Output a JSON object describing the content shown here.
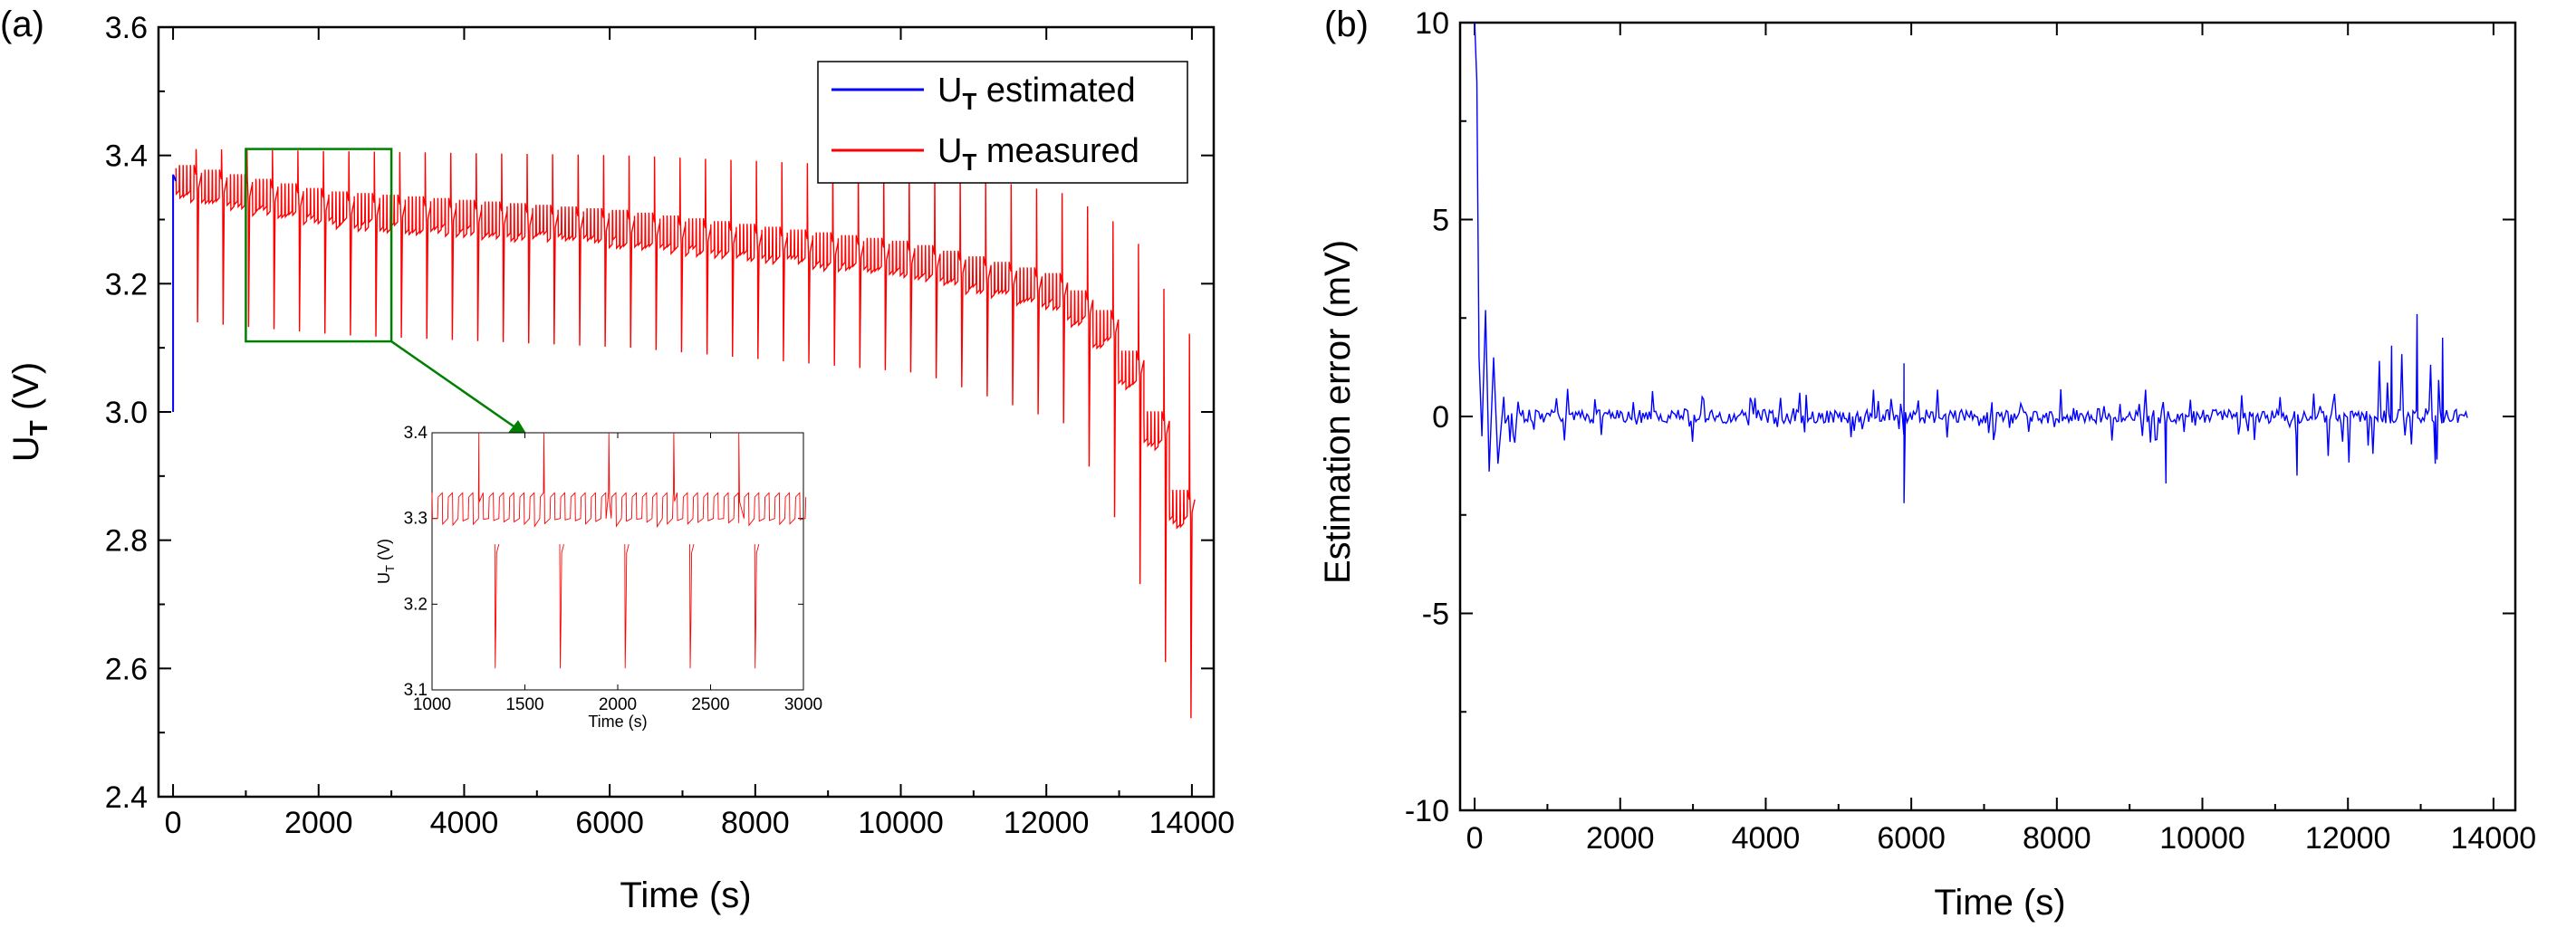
{
  "chart_data": [
    {
      "type": "line",
      "panel_label": "(a)",
      "xlabel": "Time (s)",
      "ylabel": "U",
      "ylabel_sub": "T",
      "ylabel_unit": " (V)",
      "xlim": [
        -200,
        14300
      ],
      "ylim": [
        2.4,
        3.6
      ],
      "xticks": [
        0,
        2000,
        4000,
        6000,
        8000,
        10000,
        12000,
        14000
      ],
      "xtick_labels": [
        "0",
        "2000",
        "4000",
        "6000",
        "8000",
        "10000",
        "12000",
        "14000"
      ],
      "yticks": [
        2.4,
        2.6,
        2.8,
        3.0,
        3.2,
        3.4,
        3.6
      ],
      "ytick_labels": [
        "2.4",
        "2.6",
        "2.8",
        "3.0",
        "3.2",
        "3.4",
        "3.6"
      ],
      "legend_position": "top-right",
      "series": [
        {
          "name": "U",
          "name_sub": "T",
          "name_rest": " estimated",
          "color": "#0000ff",
          "points": [
            [
              0,
              3.0
            ],
            [
              0,
              3.37
            ],
            [
              40,
              3.36
            ]
          ]
        },
        {
          "name": "U",
          "name_sub": "T",
          "name_rest": " measured",
          "color": "#ff0000",
          "pulse_period_s": 350,
          "start_s": 40,
          "end_s": 13700,
          "rest_level_anchors": [
            [
              40,
              3.37
            ],
            [
              2000,
              3.33
            ],
            [
              6000,
              3.3
            ],
            [
              10000,
              3.25
            ],
            [
              12000,
              3.2
            ],
            [
              12800,
              3.13
            ],
            [
              13300,
              3.0
            ],
            [
              13700,
              2.86
            ]
          ],
          "high_peak_anchors": [
            [
              0,
              3.41
            ],
            [
              6000,
              3.4
            ],
            [
              10000,
              3.38
            ],
            [
              12000,
              3.34
            ],
            [
              12900,
              3.28
            ],
            [
              13700,
              3.12
            ]
          ],
          "low_peak_anchors": [
            [
              0,
              3.14
            ],
            [
              2000,
              3.12
            ],
            [
              6000,
              3.1
            ],
            [
              10000,
              3.06
            ],
            [
              12000,
              2.98
            ],
            [
              12800,
              2.8
            ],
            [
              13300,
              2.62
            ],
            [
              13700,
              2.52
            ]
          ]
        }
      ],
      "zoom_box": {
        "x": [
          1000,
          3000
        ],
        "y": [
          3.11,
          3.41
        ],
        "color": "#008000"
      },
      "inset": {
        "xlabel": "Time (s)",
        "ylabel": "U",
        "ylabel_sub": "T",
        "ylabel_unit": " (V)",
        "xlim": [
          1000,
          3000
        ],
        "ylim": [
          3.1,
          3.4
        ],
        "xticks": [
          1000,
          1500,
          2000,
          2500,
          3000
        ],
        "xtick_labels": [
          "1000",
          "1500",
          "2000",
          "2500",
          "3000"
        ],
        "yticks": [
          3.1,
          3.2,
          3.3,
          3.4
        ],
        "ytick_labels": [
          "3.1",
          "3.2",
          "3.3",
          "3.4"
        ],
        "pulse_times_s": [
          1340,
          1690,
          2040,
          2390,
          2740
        ]
      }
    },
    {
      "type": "line",
      "panel_label": "(b)",
      "xlabel": "Time (s)",
      "ylabel": "Estimation error (mV)",
      "xlim": [
        -200,
        14300
      ],
      "ylim": [
        -10,
        10
      ],
      "xticks": [
        0,
        2000,
        4000,
        6000,
        8000,
        10000,
        12000,
        14000
      ],
      "xtick_labels": [
        "0",
        "2000",
        "4000",
        "6000",
        "8000",
        "10000",
        "12000",
        "14000"
      ],
      "yticks": [
        -10,
        -5,
        0,
        5,
        10
      ],
      "ytick_labels": [
        "-10",
        "-5",
        "0",
        "5",
        "10"
      ],
      "series": [
        {
          "color": "#0000ff",
          "initial_transient": [
            [
              0,
              10
            ],
            [
              30,
              8.5
            ],
            [
              60,
              1.5
            ],
            [
              100,
              -0.5
            ],
            [
              150,
              2.7
            ],
            [
              200,
              -1.4
            ],
            [
              260,
              1.5
            ],
            [
              320,
              -1.2
            ],
            [
              400,
              0.5
            ]
          ],
          "end_s": 13650,
          "spike_events": [
            [
              5900,
              1.35
            ],
            [
              5900,
              -2.2
            ],
            [
              9500,
              -1.7
            ],
            [
              11300,
              -1.5
            ],
            [
              12600,
              1.8
            ],
            [
              12950,
              2.6
            ],
            [
              13300,
              2.0
            ],
            [
              13200,
              -1.2
            ]
          ]
        }
      ]
    }
  ]
}
